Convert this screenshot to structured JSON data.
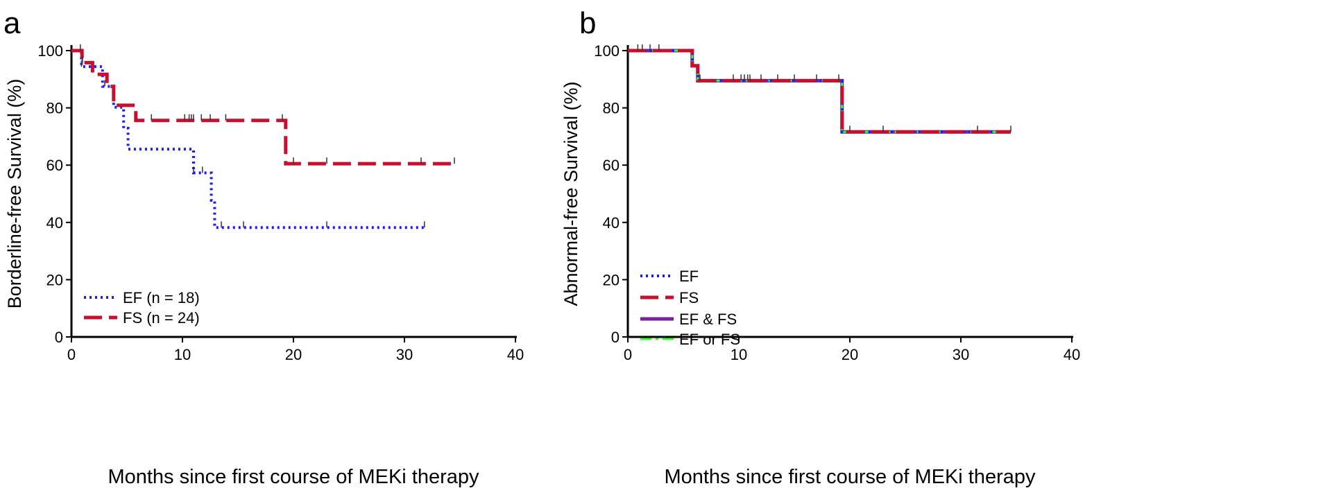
{
  "chart_data": [
    {
      "panel_label": "a",
      "type": "line",
      "subtype": "kaplan-meier step",
      "xlabel": "Months since first course of MEKi therapy",
      "ylabel": "Borderline-free Survival (%)",
      "xlim": [
        0,
        40
      ],
      "ylim": [
        0,
        100
      ],
      "xticks": [
        0,
        10,
        20,
        30,
        40
      ],
      "yticks": [
        0,
        20,
        40,
        60,
        80,
        100
      ],
      "legend_position": "bottom-left",
      "series": [
        {
          "name": "EF (n = 18)",
          "color": "#1a1aff",
          "style": "dotted",
          "steps": [
            [
              0,
              100
            ],
            [
              0.9,
              94.4
            ],
            [
              2.8,
              87.5
            ],
            [
              3.8,
              80.2
            ],
            [
              4.7,
              72.9
            ],
            [
              5.1,
              65.6
            ],
            [
              11.0,
              57.3
            ],
            [
              12.6,
              47.7
            ],
            [
              12.9,
              38.2
            ]
          ],
          "end": 31.8,
          "censor": [
            0.9,
            3.0,
            11.0,
            11.8,
            13.5,
            15.5,
            23.0,
            31.8
          ]
        },
        {
          "name": "FS (n = 24)",
          "color": "#c8102e",
          "style": "dashed",
          "steps": [
            [
              0,
              100
            ],
            [
              0.95,
              95.8
            ],
            [
              1.9,
              91.7
            ],
            [
              3.2,
              87.5
            ],
            [
              3.8,
              80.9
            ],
            [
              5.8,
              75.6
            ],
            [
              19.3,
              60.5
            ]
          ],
          "end": 34.5,
          "censor": [
            0.8,
            1.0,
            7.2,
            10.2,
            10.6,
            10.8,
            11.0,
            11.7,
            12.5,
            13.9,
            19.0,
            20.0,
            23.0,
            31.5,
            34.5
          ]
        }
      ]
    },
    {
      "panel_label": "b",
      "type": "line",
      "subtype": "kaplan-meier step",
      "xlabel": "Months since first course of MEKi therapy",
      "ylabel": "Abnormal-free Survival (%)",
      "xlim": [
        0,
        40
      ],
      "ylim": [
        0,
        100
      ],
      "xticks": [
        0,
        10,
        20,
        30,
        40
      ],
      "yticks": [
        0,
        20,
        40,
        60,
        80,
        100
      ],
      "legend_position": "bottom-left",
      "series": [
        {
          "name": "EF",
          "color": "#1a1aff",
          "style": "dotted"
        },
        {
          "name": "FS",
          "color": "#c8102e",
          "style": "dashed"
        },
        {
          "name": "EF & FS",
          "color": "#7b1fa2",
          "style": "solid"
        },
        {
          "name": "EF or FS",
          "color": "#33ff33",
          "style": "dashdot"
        }
      ],
      "curve": {
        "steps": [
          [
            0,
            100
          ],
          [
            5.8,
            94.7
          ],
          [
            6.3,
            89.5
          ],
          [
            19.3,
            71.6
          ]
        ],
        "end": 34.5,
        "censor": [
          0.9,
          1.3,
          2.0,
          2.8,
          6.5,
          9.5,
          10.2,
          10.5,
          10.8,
          11.0,
          12.0,
          13.5,
          15.0,
          17.0,
          19.0,
          20.0,
          23.0,
          31.5,
          34.5
        ]
      }
    }
  ]
}
